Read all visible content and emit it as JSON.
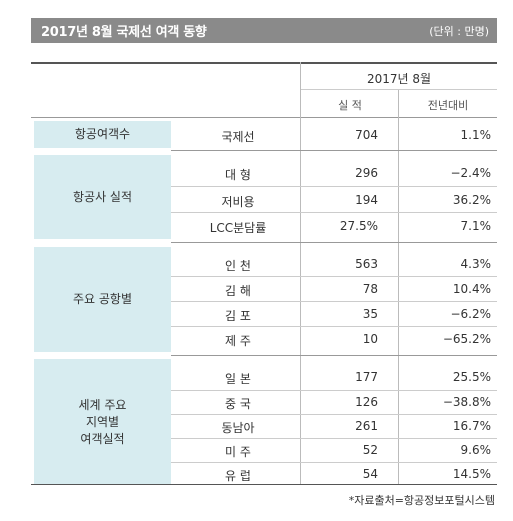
{
  "title": "2017년 8월 국제선 여객 동향",
  "unit": "(단위 : 만명)",
  "header": {
    "period": "2017년 8월",
    "col1": "실 적",
    "col2": "전년대비"
  },
  "groups": [
    {
      "label": "항공여객수",
      "rows": [
        {
          "item": "국제선",
          "value": "704",
          "change": "1.1%"
        }
      ]
    },
    {
      "label": "항공사 실적",
      "rows": [
        {
          "item": "대 형",
          "value": "296",
          "change": "−2.4%"
        },
        {
          "item": "저비용",
          "value": "194",
          "change": "36.2%"
        },
        {
          "item": "LCC분담률",
          "value": "27.5%",
          "change": "7.1%"
        }
      ]
    },
    {
      "label": "주요 공항별",
      "rows": [
        {
          "item": "인 천",
          "value": "563",
          "change": "4.3%"
        },
        {
          "item": "김 해",
          "value": "78",
          "change": "10.4%"
        },
        {
          "item": "김 포",
          "value": "35",
          "change": "−6.2%"
        },
        {
          "item": "제 주",
          "value": "10",
          "change": "−65.2%"
        }
      ]
    },
    {
      "label": "세계 주요\n지역별\n여객실적",
      "rows": [
        {
          "item": "일 본",
          "value": "177",
          "change": "25.5%"
        },
        {
          "item": "중 국",
          "value": "126",
          "change": "−38.8%"
        },
        {
          "item": "동남아",
          "value": "261",
          "change": "16.7%"
        },
        {
          "item": "미 주",
          "value": "52",
          "change": "9.6%"
        },
        {
          "item": "유 럽",
          "value": "54",
          "change": "14.5%"
        }
      ]
    }
  ],
  "source": "*자료출처=항공정보포털시스템"
}
